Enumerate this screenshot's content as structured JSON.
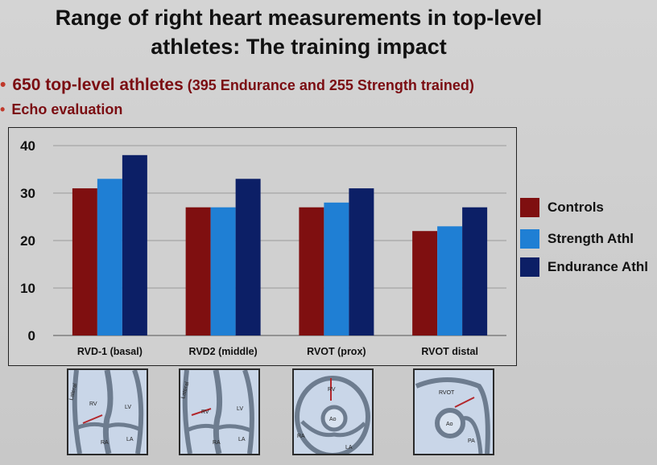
{
  "slide": {
    "title_line1": "Range of right heart measurements in top-level",
    "title_line2": "athletes:  The training impact",
    "bullet1_main": "650  top-level athletes",
    "bullet1_sub": " (395 Endurance and  255 Strength  trained)",
    "bullet2": "Echo evaluation",
    "bullet_glyph": "•"
  },
  "colors": {
    "Controls": "#7f0f10",
    "Strength Athl": "#1f7fd4",
    "Endurance Athl": "#0c1f66"
  },
  "chart_data": {
    "type": "bar",
    "categories": [
      "RVD-1 (basal)",
      "RVD2 (middle)",
      "RVOT (prox)",
      "RVOT distal"
    ],
    "series": [
      {
        "name": "Controls",
        "values": [
          31,
          27,
          27,
          22
        ]
      },
      {
        "name": "Strength Athl",
        "values": [
          33,
          27,
          28,
          23
        ]
      },
      {
        "name": "Endurance Athl",
        "values": [
          38,
          33,
          31,
          27
        ]
      }
    ],
    "yticks": [
      0,
      10,
      20,
      30,
      40
    ],
    "ylim": [
      0,
      40
    ],
    "grid": true,
    "legend_position": "right"
  },
  "thumbnails": [
    {
      "icon": "apical-4-chamber-echo-icon",
      "labels": [
        "Lateral",
        "RV",
        "LV",
        "RA",
        "LA"
      ]
    },
    {
      "icon": "apical-4-chamber-echo-icon",
      "labels": [
        "Lateral",
        "RV",
        "LV",
        "RA",
        "LA"
      ]
    },
    {
      "icon": "short-axis-rvot-echo-icon",
      "labels": [
        "RV",
        "Ao",
        "RA",
        "LA"
      ]
    },
    {
      "icon": "rvot-distal-echo-icon",
      "labels": [
        "RVOT",
        "Ao",
        "PA"
      ]
    }
  ]
}
